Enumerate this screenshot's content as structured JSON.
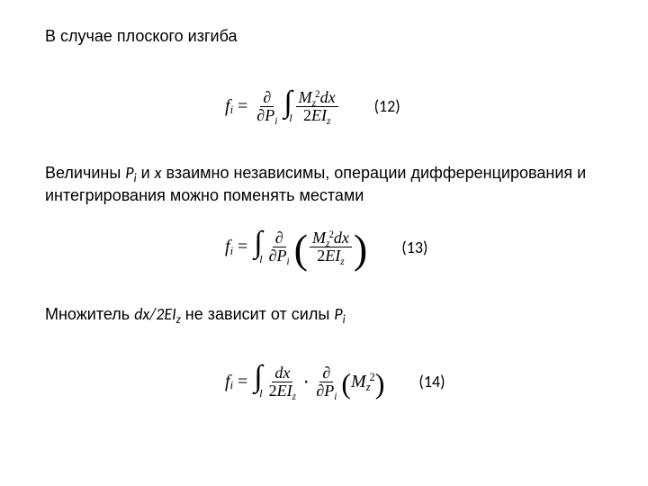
{
  "colors": {
    "text": "#000000",
    "background": "#ffffff",
    "rule": "#000000"
  },
  "typography": {
    "body_font": "Arial",
    "body_size_pt": 14,
    "math_font": "Times New Roman",
    "math_size_pt": 15,
    "eqnum_font": "Calibri",
    "eqnum_size_pt": 14
  },
  "paragraphs": {
    "p1": "В случае плоского изгиба",
    "p2_pre": "Величины ",
    "p2_Pi_P": "P",
    "p2_Pi_i": "i",
    "p2_mid1": " и ",
    "p2_x": "x",
    "p2_tail": " взаимно независимы, операции дифференцирования и интегрирования можно поменять местами",
    "p3_pre": "Множитель ",
    "p3_dx": "dx/2EI",
    "p3_dx_z": "z",
    "p3_mid": " не зависит от силы ",
    "p3_Pi_P": "P",
    "p3_Pi_i": "i"
  },
  "equations": {
    "eq12": {
      "number": "(12)",
      "lhs": {
        "f": "f",
        "i": "i"
      },
      "partial_num": "∂",
      "partial_den_d": "∂",
      "partial_P": "P",
      "partial_i": "i",
      "int_lower": "l",
      "frac_num": {
        "M": "M",
        "z": "z",
        "two": "2",
        "dx": "dx"
      },
      "frac_den": {
        "two": "2",
        "E": "E",
        "I": "I",
        "z": "z"
      }
    },
    "eq13": {
      "number": "(13)",
      "lhs": {
        "f": "f",
        "i": "i"
      },
      "int_lower": "l",
      "partial_num": "∂",
      "partial_den_d": "∂",
      "partial_P": "P",
      "partial_i": "i",
      "inner_num": {
        "M": "M",
        "z": "z",
        "two": "2",
        "dx": "dx"
      },
      "inner_den": {
        "two": "2",
        "E": "E",
        "I": "I",
        "z": "z"
      }
    },
    "eq14": {
      "number": "(14)",
      "lhs": {
        "f": "f",
        "i": "i"
      },
      "int_lower": "l",
      "frac_num": "dx",
      "frac_den": {
        "two": "2",
        "E": "E",
        "I": "I",
        "z": "z"
      },
      "dot": "⋅",
      "partial_num": "∂",
      "partial_den_d": "∂",
      "partial_P": "P",
      "partial_i": "i",
      "paren": {
        "M": "M",
        "z": "z",
        "two": "2"
      }
    }
  }
}
